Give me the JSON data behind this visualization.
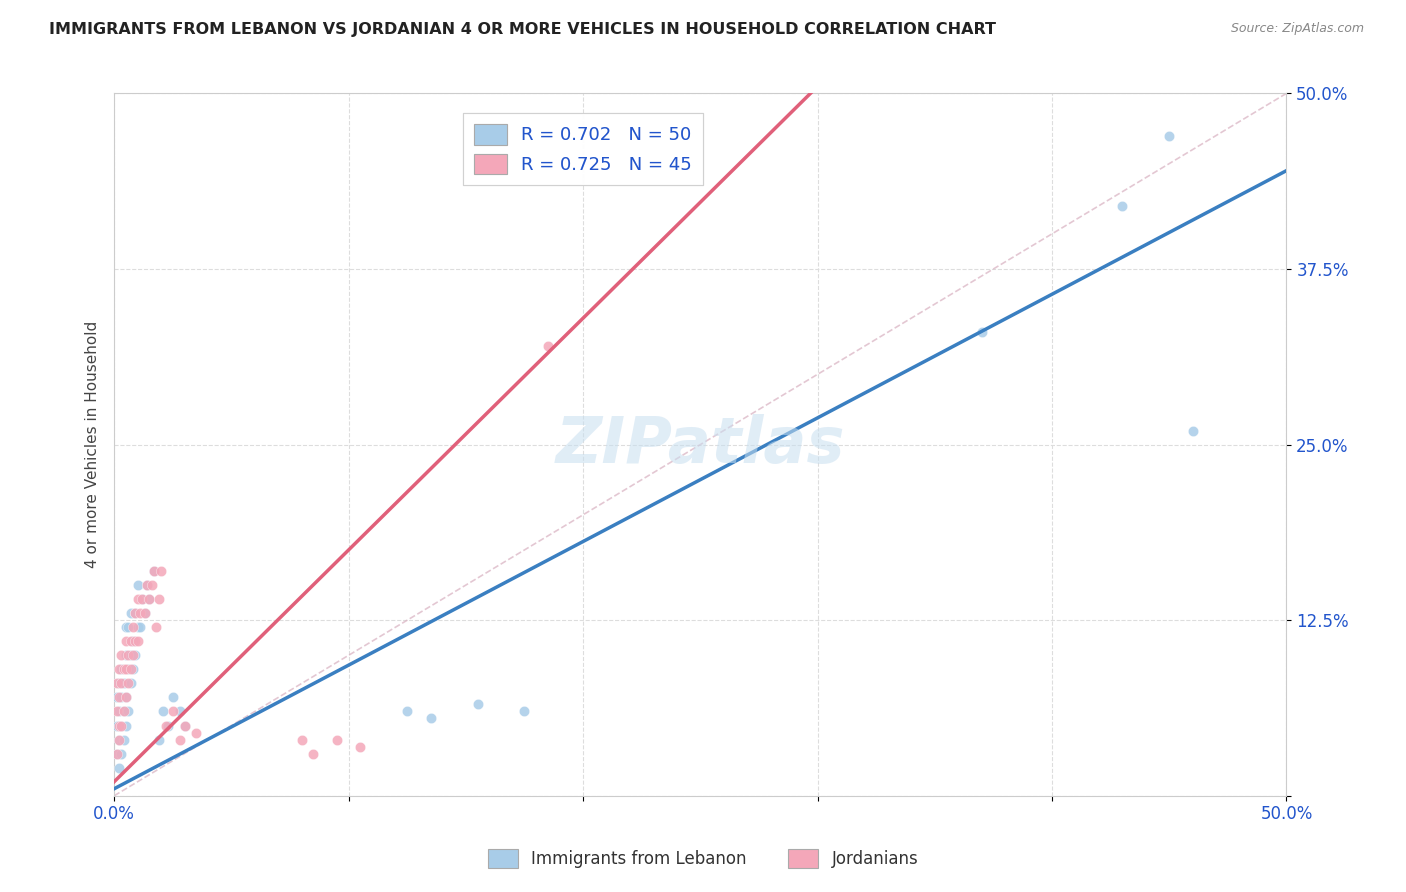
{
  "title": "IMMIGRANTS FROM LEBANON VS JORDANIAN 4 OR MORE VEHICLES IN HOUSEHOLD CORRELATION CHART",
  "source": "Source: ZipAtlas.com",
  "ylabel": "4 or more Vehicles in Household",
  "legend1_label": "R = 0.702   N = 50",
  "legend2_label": "R = 0.725   N = 45",
  "legend_bottom1": "Immigrants from Lebanon",
  "legend_bottom2": "Jordanians",
  "xlim": [
    0.0,
    0.5
  ],
  "ylim": [
    0.0,
    0.5
  ],
  "color_blue": "#a8cce8",
  "color_pink": "#f4a7b9",
  "line_blue": "#3a7fc1",
  "line_pink": "#e0607a",
  "watermark": "ZIPatlas",
  "blue_intercept": 0.005,
  "blue_slope": 0.88,
  "pink_intercept": 0.01,
  "pink_slope": 1.65,
  "lebanon_x": [
    0.001,
    0.001,
    0.001,
    0.002,
    0.002,
    0.002,
    0.002,
    0.003,
    0.003,
    0.003,
    0.003,
    0.004,
    0.004,
    0.004,
    0.005,
    0.005,
    0.005,
    0.005,
    0.006,
    0.006,
    0.006,
    0.007,
    0.007,
    0.007,
    0.008,
    0.008,
    0.009,
    0.009,
    0.01,
    0.01,
    0.011,
    0.012,
    0.013,
    0.014,
    0.015,
    0.017,
    0.019,
    0.021,
    0.023,
    0.025,
    0.028,
    0.03,
    0.125,
    0.135,
    0.155,
    0.175,
    0.37,
    0.43,
    0.45,
    0.46
  ],
  "lebanon_y": [
    0.03,
    0.05,
    0.07,
    0.02,
    0.04,
    0.06,
    0.08,
    0.03,
    0.05,
    0.07,
    0.09,
    0.04,
    0.06,
    0.08,
    0.05,
    0.07,
    0.1,
    0.12,
    0.06,
    0.09,
    0.12,
    0.08,
    0.1,
    0.13,
    0.09,
    0.11,
    0.1,
    0.13,
    0.12,
    0.15,
    0.12,
    0.14,
    0.13,
    0.15,
    0.14,
    0.16,
    0.04,
    0.06,
    0.05,
    0.07,
    0.06,
    0.05,
    0.06,
    0.055,
    0.065,
    0.06,
    0.33,
    0.42,
    0.47,
    0.26
  ],
  "jordan_x": [
    0.001,
    0.001,
    0.001,
    0.002,
    0.002,
    0.002,
    0.002,
    0.003,
    0.003,
    0.003,
    0.004,
    0.004,
    0.005,
    0.005,
    0.005,
    0.006,
    0.006,
    0.007,
    0.007,
    0.008,
    0.008,
    0.009,
    0.009,
    0.01,
    0.01,
    0.011,
    0.012,
    0.013,
    0.014,
    0.015,
    0.016,
    0.017,
    0.018,
    0.019,
    0.02,
    0.022,
    0.025,
    0.028,
    0.03,
    0.035,
    0.08,
    0.085,
    0.095,
    0.105,
    0.185
  ],
  "jordan_y": [
    0.03,
    0.06,
    0.08,
    0.04,
    0.05,
    0.07,
    0.09,
    0.05,
    0.08,
    0.1,
    0.06,
    0.09,
    0.07,
    0.09,
    0.11,
    0.08,
    0.1,
    0.09,
    0.11,
    0.1,
    0.12,
    0.11,
    0.13,
    0.11,
    0.14,
    0.13,
    0.14,
    0.13,
    0.15,
    0.14,
    0.15,
    0.16,
    0.12,
    0.14,
    0.16,
    0.05,
    0.06,
    0.04,
    0.05,
    0.045,
    0.04,
    0.03,
    0.04,
    0.035,
    0.32
  ]
}
